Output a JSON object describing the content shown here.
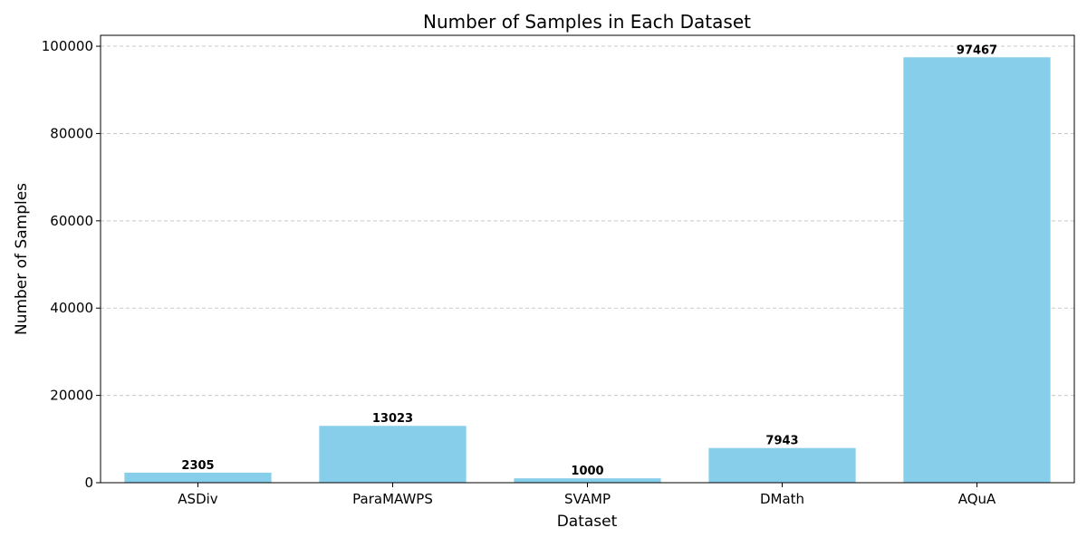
{
  "chart_data": {
    "type": "bar",
    "title": "Number of Samples in Each Dataset",
    "xlabel": "Dataset",
    "ylabel": "Number of Samples",
    "categories": [
      "ASDiv",
      "ParaMAWPS",
      "SVAMP",
      "DMath",
      "AQuA"
    ],
    "values": [
      2305,
      13023,
      1000,
      7943,
      97467
    ],
    "data_labels": [
      "2305",
      "13023",
      "1000",
      "7943",
      "97467"
    ],
    "ylim": [
      0,
      102500
    ],
    "yticks": [
      0,
      20000,
      40000,
      60000,
      80000,
      100000
    ],
    "ytick_labels": [
      "0",
      "20000",
      "40000",
      "60000",
      "80000",
      "100000"
    ],
    "grid": {
      "axis": "y",
      "style": "dashed"
    },
    "bar_color": "#87CEEB"
  }
}
